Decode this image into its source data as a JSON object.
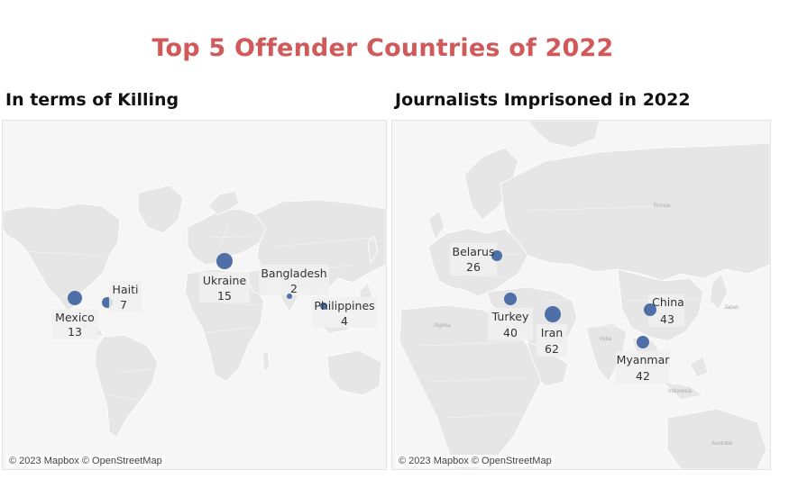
{
  "title": "Top 5 Offender Countries of 2022",
  "attribution": "© 2023 Mapbox © OpenStreetMap",
  "colors": {
    "title": "#d0595a",
    "marker": "#4e6fa8",
    "land": "#e6e6e6",
    "water": "#f6f6f6"
  },
  "killing": {
    "title": "In terms of Killing",
    "points": [
      {
        "country": "Mexico",
        "value": 13
      },
      {
        "country": "Haiti",
        "value": 7
      },
      {
        "country": "Ukraine",
        "value": 15
      },
      {
        "country": "Bangladesh",
        "value": 2
      },
      {
        "country": "Philippines",
        "value": 4
      }
    ]
  },
  "imprisoned": {
    "title": "Journalists Imprisoned in 2022",
    "points": [
      {
        "country": "Belarus",
        "value": 26
      },
      {
        "country": "Turkey",
        "value": 40
      },
      {
        "country": "Iran",
        "value": 62
      },
      {
        "country": "China",
        "value": 43
      },
      {
        "country": "Myanmar",
        "value": 42
      }
    ],
    "geo_labels": [
      "Russia",
      "Japan",
      "Algeria",
      "India",
      "Indonesia",
      "Australia"
    ]
  }
}
